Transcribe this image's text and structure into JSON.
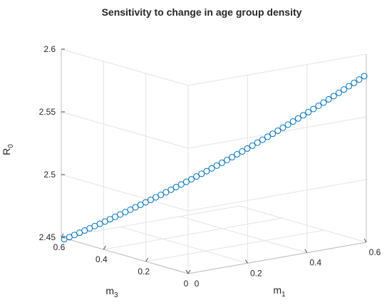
{
  "chart_data": {
    "type": "scatter",
    "title": "Sensitivity to change in age group density",
    "xlabel_main": "m",
    "xlabel_sub": "1",
    "ylabel_main": "m",
    "ylabel_sub": "3",
    "zlabel_main": "R",
    "zlabel_sub": "0",
    "xlim": [
      0,
      0.6
    ],
    "ylim": [
      0,
      0.6
    ],
    "zlim": [
      2.45,
      2.6
    ],
    "x_ticks": [
      "0",
      "0.2",
      "0.4",
      "0.6"
    ],
    "y_ticks": [
      "0",
      "0.2",
      "0.4",
      "0.6"
    ],
    "z_ticks": [
      "2.45",
      "2.5",
      "2.55",
      "2.6"
    ],
    "grid": true,
    "marker": "open-circle",
    "marker_color": "#0072BD",
    "series_param": {
      "n_points": 60,
      "m1_start": 0.01,
      "m1_end": 0.6,
      "m3_start": 0.6,
      "m3_end": 0.01,
      "r0_start": 2.448,
      "r0_end": 2.582
    }
  }
}
